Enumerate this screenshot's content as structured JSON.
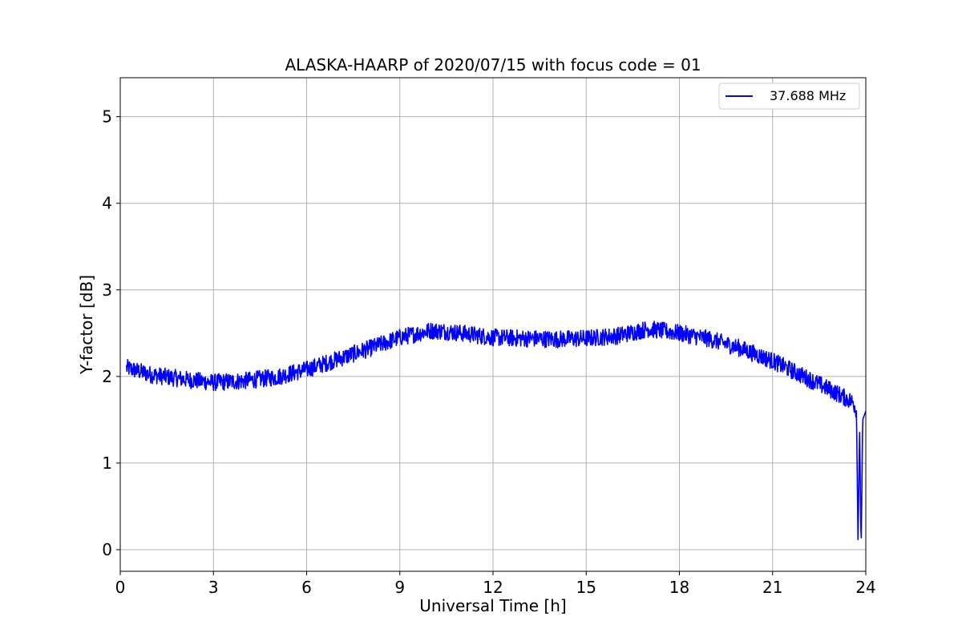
{
  "chart_data": {
    "type": "line",
    "title": "ALASKA-HAARP of 2020/07/15 with focus code = 01",
    "xlabel": "Universal Time [h]",
    "ylabel": "Y-factor [dB]",
    "xlim": [
      0,
      24
    ],
    "ylim": [
      -0.25,
      5.45
    ],
    "xticks": [
      0,
      3,
      6,
      9,
      12,
      15,
      18,
      21,
      24
    ],
    "yticks": [
      0,
      1,
      2,
      3,
      4,
      5
    ],
    "grid": true,
    "legend_position": "top-right",
    "series": [
      {
        "name": "37.688 MHz",
        "color": "#0000ff",
        "noise_amplitude": 0.1,
        "x": [
          0.2,
          1.0,
          2.0,
          3.0,
          4.0,
          5.0,
          6.0,
          7.0,
          8.0,
          9.0,
          10.0,
          10.5,
          11.0,
          12.0,
          13.0,
          14.0,
          15.0,
          16.0,
          17.0,
          18.0,
          19.0,
          20.0,
          21.0,
          22.0,
          23.0,
          23.6,
          23.7,
          23.75,
          23.8,
          23.85,
          23.9,
          24.0
        ],
        "y": [
          2.1,
          2.02,
          1.97,
          1.93,
          1.95,
          1.99,
          2.08,
          2.2,
          2.32,
          2.45,
          2.53,
          2.52,
          2.5,
          2.45,
          2.44,
          2.43,
          2.44,
          2.47,
          2.55,
          2.5,
          2.43,
          2.32,
          2.18,
          2.0,
          1.82,
          1.7,
          1.6,
          0.08,
          1.4,
          0.0,
          1.5,
          1.6
        ]
      }
    ]
  }
}
